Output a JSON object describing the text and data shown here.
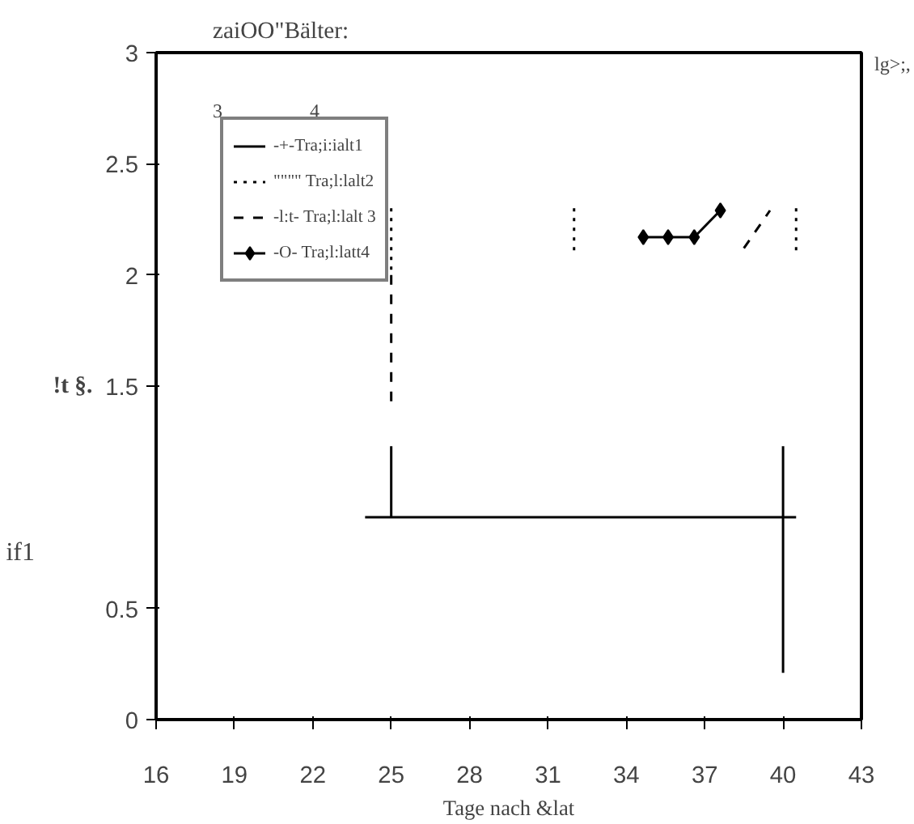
{
  "chart_data": {
    "type": "line",
    "title": "zaiOO\"Bälter:",
    "xlabel": "Tage nach &lat",
    "ylabel": "!t §.",
    "annotations": [
      "3",
      "4",
      "lg>;,",
      "if1"
    ],
    "xlim": [
      16,
      43
    ],
    "xticks": [
      16,
      19,
      22,
      25,
      28,
      31,
      34,
      37,
      40,
      43
    ],
    "ylim": [
      0,
      3
    ],
    "yticks": [
      0,
      0.5,
      1.5,
      2,
      2.5,
      3
    ],
    "grid": false,
    "legend": "top left",
    "series": [
      {
        "name": "-+-Tra;i:ialt1",
        "color": "#000000",
        "line_style": "solid",
        "x": [
          24,
          40.5,
          null,
          25,
          25,
          null,
          40,
          40
        ],
        "values": [
          0.91,
          0.91,
          null,
          0.91,
          1.23,
          null,
          1.23,
          0.21
        ]
      },
      {
        "name": "\"\"\"\" Tra;l:lalt2",
        "color": "#000000",
        "line_style": "dotted",
        "x": [
          25,
          25,
          null,
          32,
          32,
          null,
          40.5,
          40.5
        ],
        "values": [
          2.3,
          2.0,
          null,
          2.3,
          2.1,
          null,
          2.3,
          2.1
        ]
      },
      {
        "name": "-l:t- Tra;l:lalt 3",
        "color": "#000000",
        "line_style": "dashed",
        "x": [
          25,
          25,
          null,
          38.5,
          39.5
        ],
        "values": [
          2.0,
          1.4,
          null,
          2.12,
          2.29
        ]
      },
      {
        "name": "-O- Tra;l:latt4",
        "color": "#000000",
        "line_style": "solid",
        "marker": "diamond",
        "x": [
          34.65,
          35.6,
          36.6,
          37.6
        ],
        "values": [
          2.17,
          2.17,
          2.17,
          2.29
        ]
      }
    ]
  }
}
